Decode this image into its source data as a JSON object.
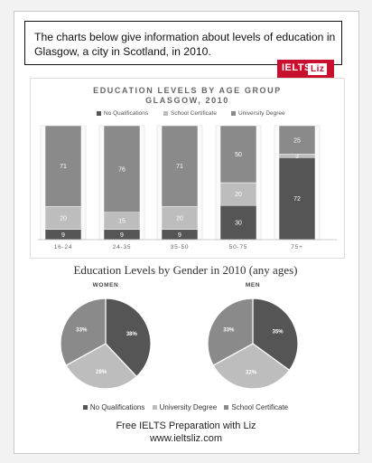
{
  "prompt_text": "The charts below give information about levels of education in Glasgow, a city in Scotland, in 2010.",
  "badge": {
    "left": "IELTS",
    "right": "Liz"
  },
  "colors": {
    "no_qual": "#555555",
    "school": "#bdbdbd",
    "degree": "#8a8a8a",
    "brand": "#c8102e"
  },
  "chart_data": [
    {
      "type": "bar",
      "stacked": true,
      "title": "EDUCATION LEVELS BY AGE GROUP",
      "subtitle": "GLASGOW, 2010",
      "categories": [
        "16-24",
        "24-35",
        "35-50",
        "50-75",
        "75+"
      ],
      "series": [
        {
          "name": "No Qualifications",
          "values": [
            9,
            9,
            9,
            30,
            72
          ]
        },
        {
          "name": "School Certificate",
          "values": [
            20,
            15,
            20,
            20,
            3
          ]
        },
        {
          "name": "University Degree",
          "values": [
            71,
            76,
            71,
            50,
            25
          ]
        }
      ],
      "legend": "top",
      "grid": false
    },
    {
      "type": "pie",
      "title": "Education Levels by Gender in 2010 (any ages)",
      "chart_title": "WOMEN",
      "slices": [
        {
          "name": "No Qualifications",
          "value": 38
        },
        {
          "name": "University Degree",
          "value": 29
        },
        {
          "name": "School Certificate",
          "value": 33
        }
      ],
      "labels": [
        "38%",
        "29%",
        "33%"
      ]
    },
    {
      "type": "pie",
      "chart_title": "MEN",
      "slices": [
        {
          "name": "No Qualifications",
          "value": 35
        },
        {
          "name": "University Degree",
          "value": 32
        },
        {
          "name": "School Certificate",
          "value": 33
        }
      ],
      "labels": [
        "35%",
        "32%",
        "33%"
      ]
    }
  ],
  "pie_legend": [
    "No Qualifications",
    "University Degree",
    "School Certificate"
  ],
  "footer": {
    "line1": "Free IELTS Preparation with Liz",
    "line2": "www.ieltsliz.com"
  }
}
